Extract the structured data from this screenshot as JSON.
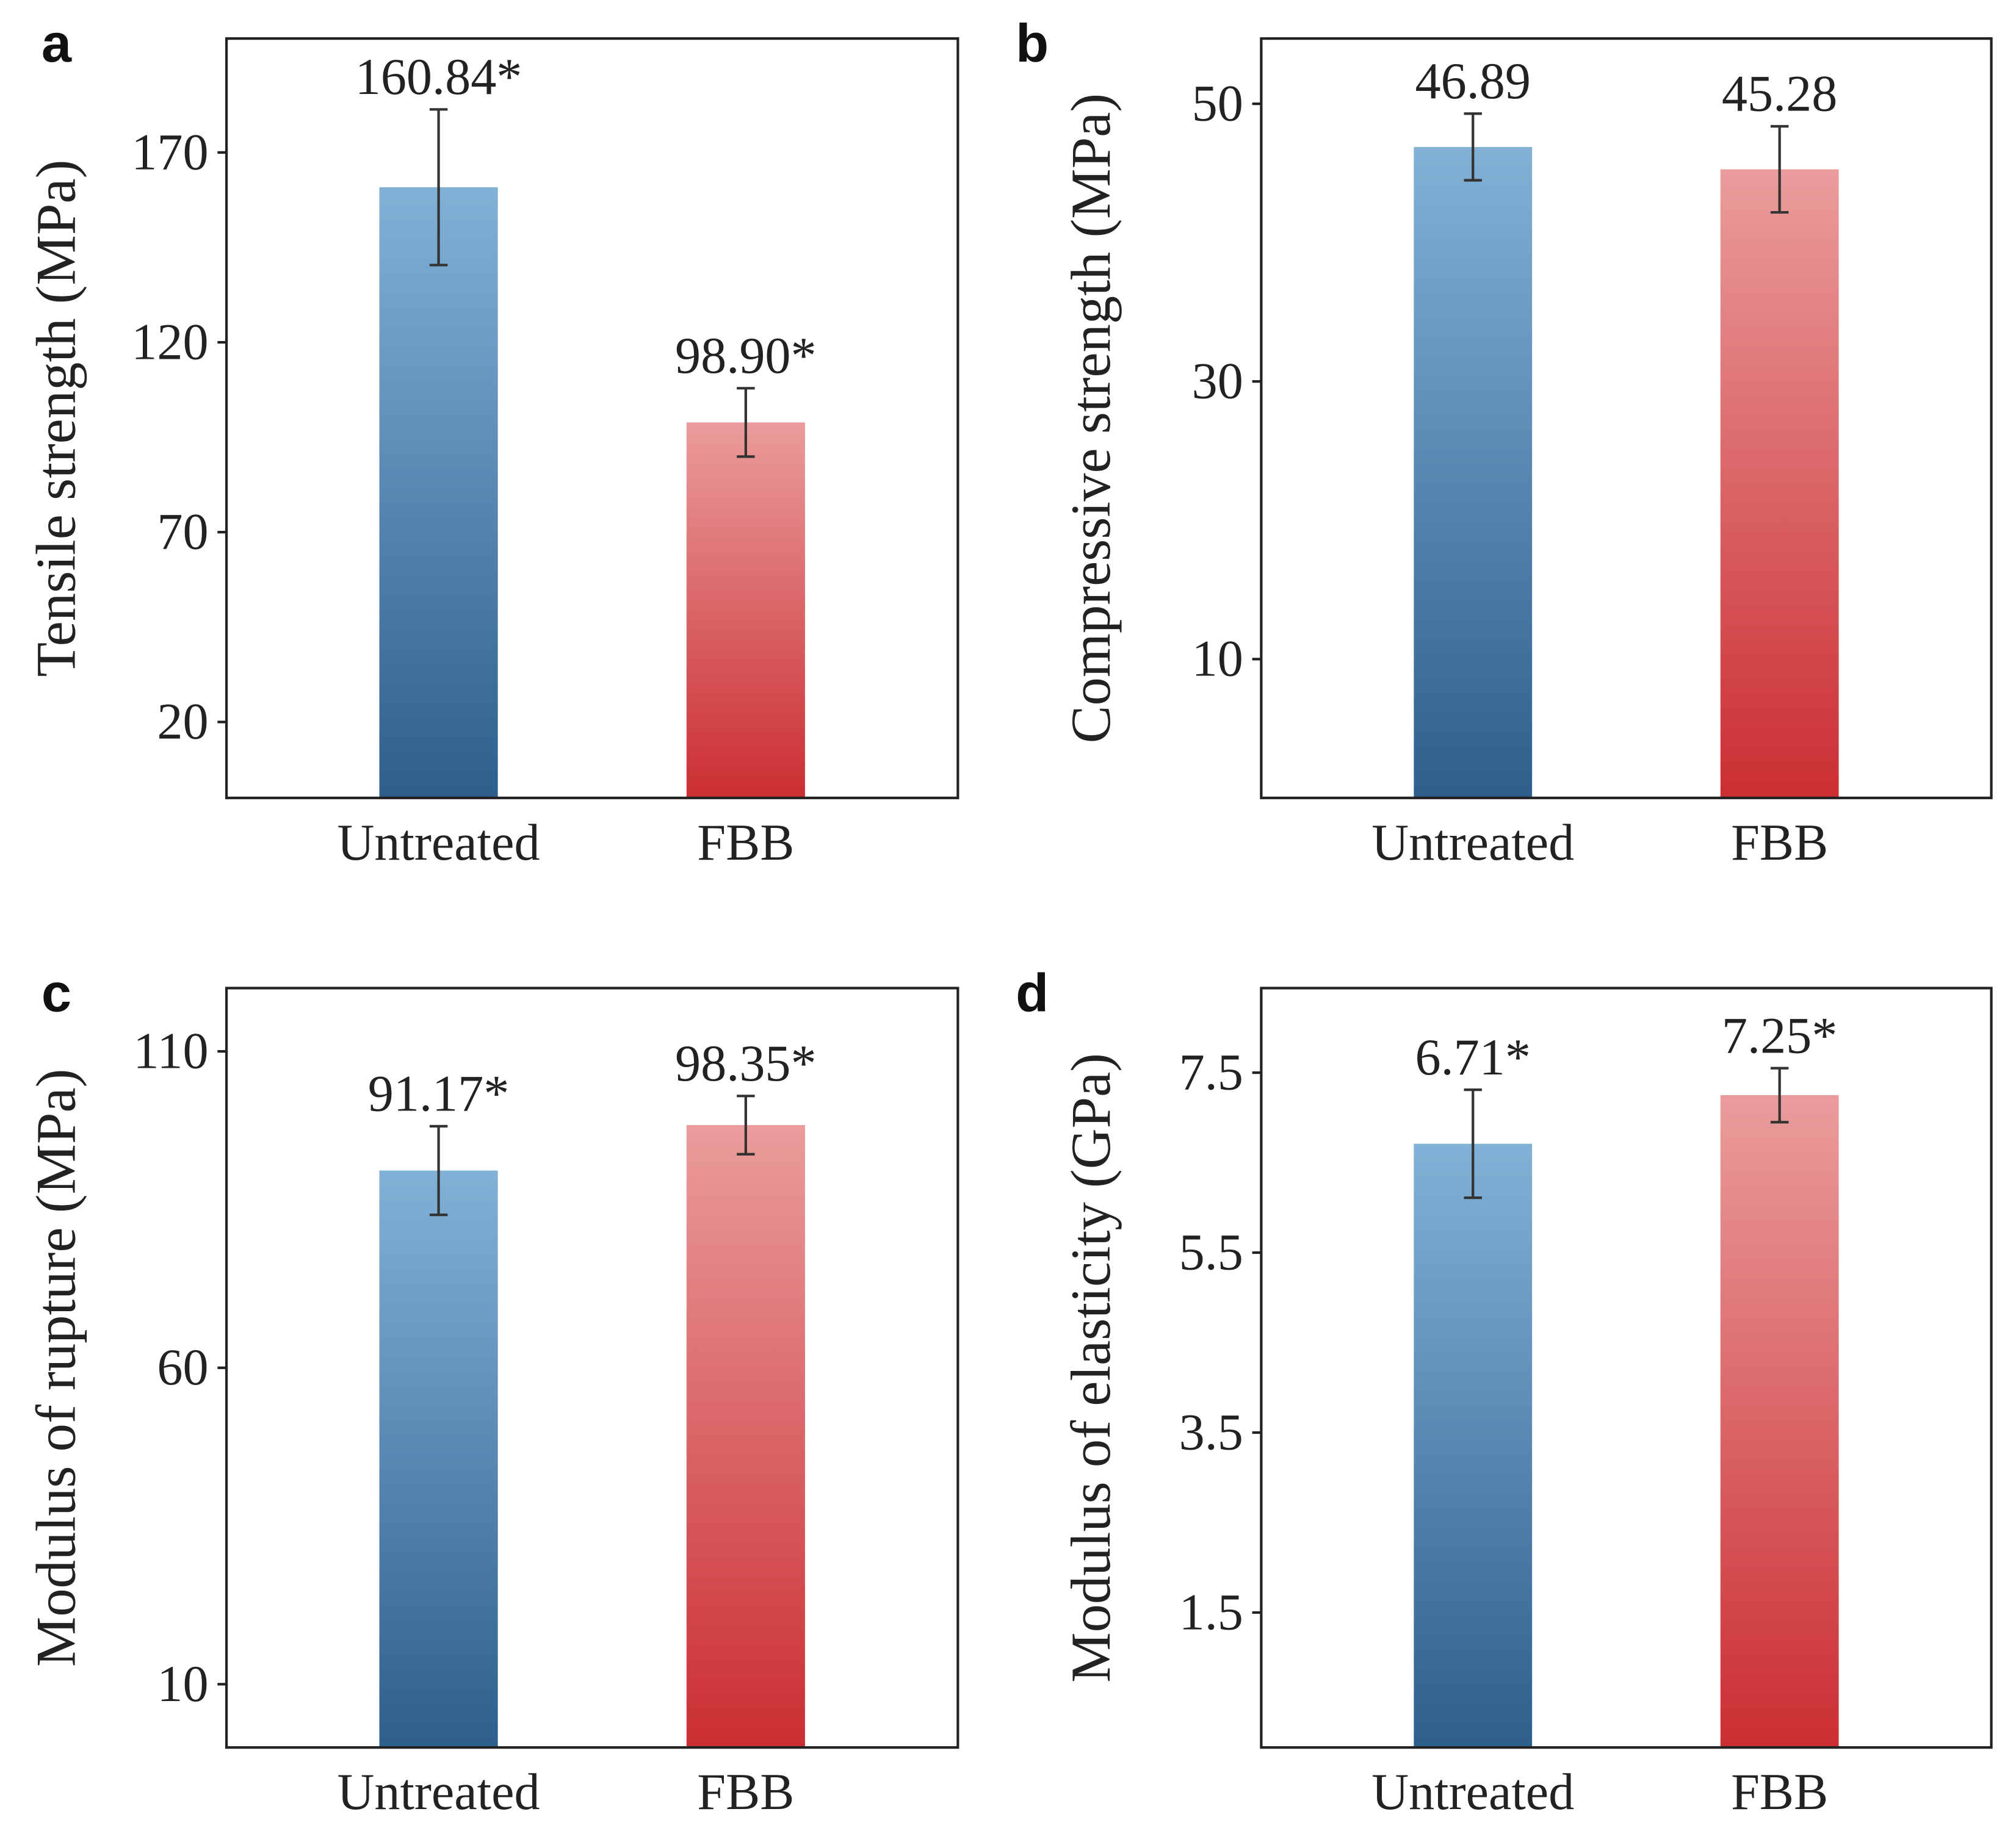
{
  "colors": {
    "untreated_top": "#82b1d6",
    "untreated_bottom": "#2e5f8c",
    "fbb_top": "#ea9c9c",
    "fbb_bottom": "#cb2e32"
  },
  "chart_data": [
    {
      "type": "bar",
      "panel": "a",
      "categories": [
        "Untreated",
        "FBB"
      ],
      "values": [
        160.84,
        98.9
      ],
      "errors": [
        20.5,
        9.0
      ],
      "value_labels": [
        "160.84*",
        "98.90*"
      ],
      "ylabel": "Tensile strength (MPa)",
      "ylim": [
        0,
        200
      ],
      "yticks": [
        20,
        70,
        120,
        170
      ],
      "ytick_labels": [
        "20",
        "70",
        "120",
        "170"
      ]
    },
    {
      "type": "bar",
      "panel": "b",
      "categories": [
        "Untreated",
        "FBB"
      ],
      "values": [
        46.89,
        45.28
      ],
      "errors": [
        2.4,
        3.1
      ],
      "value_labels": [
        "46.89",
        "45.28"
      ],
      "ylabel": "Compressive strength (MPa)",
      "ylim": [
        0,
        54.7
      ],
      "yticks": [
        10,
        30,
        50
      ],
      "ytick_labels": [
        "10",
        "30",
        "50"
      ]
    },
    {
      "type": "bar",
      "panel": "c",
      "categories": [
        "Untreated",
        "FBB"
      ],
      "values": [
        91.17,
        98.35
      ],
      "errors": [
        7.0,
        4.6
      ],
      "value_labels": [
        "91.17*",
        "98.35*"
      ],
      "ylabel": "Modulus of rupture (MPa)",
      "ylim": [
        0,
        120
      ],
      "yticks": [
        10,
        60,
        110
      ],
      "ytick_labels": [
        "10",
        "60",
        "110"
      ]
    },
    {
      "type": "bar",
      "panel": "d",
      "categories": [
        "Untreated",
        "FBB"
      ],
      "values": [
        6.71,
        7.25
      ],
      "errors": [
        0.6,
        0.3
      ],
      "value_labels": [
        "6.71*",
        "7.25*"
      ],
      "ylabel": "Modulus of elasticity (GPa)",
      "ylim": [
        0,
        8.44
      ],
      "yticks": [
        1.5,
        3.5,
        5.5,
        7.5
      ],
      "ytick_labels": [
        "1.5",
        "3.5",
        "5.5",
        "7.5"
      ]
    }
  ]
}
